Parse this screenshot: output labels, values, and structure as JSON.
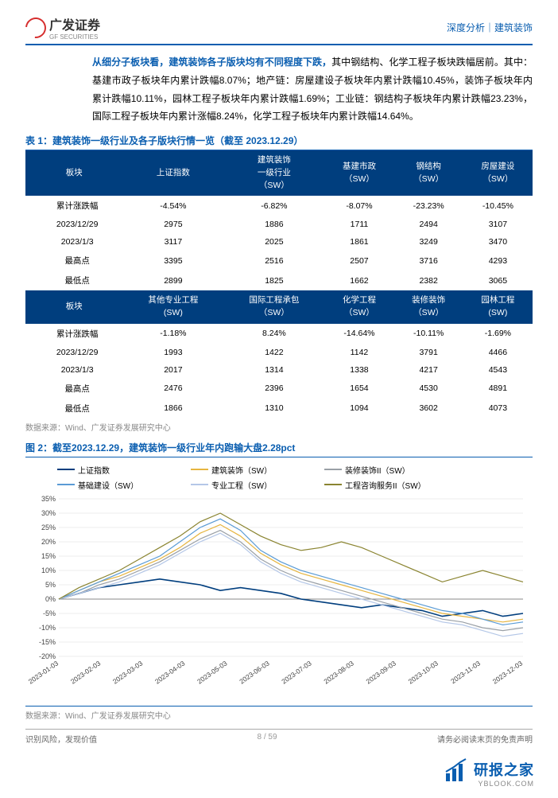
{
  "header": {
    "logo_cn": "广发证券",
    "logo_en": "GF SECURITIES",
    "right": "深度分析｜建筑装饰"
  },
  "paragraph": {
    "lead": "从细分子板块看，建筑装饰各子版块均有不同程度下跌，",
    "rest": "其中钢结构、化学工程子板块跌幅居前。其中：基建市政子板块年内累计跌幅8.07%；地产链：房屋建设子板块年内累计跌幅10.45%，装饰子板块年内累计跌幅10.11%，园林工程子板块年内累计跌幅1.69%；工业链：钢结构子板块年内累计跌幅23.23%，国际工程子板块年内累计涨幅8.24%，化学工程子板块年内累计跌幅14.64%。"
  },
  "table1": {
    "caption": "表 1：建筑装饰一级行业及各子版块行情一览（截至 2023.12.29）",
    "source": "数据来源：Wind、广发证券发展研究中心",
    "head1": [
      "板块",
      "上证指数",
      "建筑装饰\n一级行业\n（SW）",
      "基建市政\n（SW）",
      "钢结构\n（SW）",
      "房屋建设\n（SW）"
    ],
    "rows1": [
      [
        "累计涨跌幅",
        "-4.54%",
        "-6.82%",
        "-8.07%",
        "-23.23%",
        "-10.45%"
      ],
      [
        "2023/12/29",
        "2975",
        "1886",
        "1711",
        "2494",
        "3107"
      ],
      [
        "2023/1/3",
        "3117",
        "2025",
        "1861",
        "3249",
        "3470"
      ],
      [
        "最高点",
        "3395",
        "2516",
        "2507",
        "3716",
        "4293"
      ],
      [
        "最低点",
        "2899",
        "1825",
        "1662",
        "2382",
        "3065"
      ]
    ],
    "head2": [
      "板块",
      "其他专业工程\n(SW)",
      "国际工程承包\n（SW）",
      "化学工程\n（SW）",
      "装修装饰\n（SW）",
      "园林工程\n(SW)"
    ],
    "rows2": [
      [
        "累计涨跌幅",
        "-1.18%",
        "8.24%",
        "-14.64%",
        "-10.11%",
        "-1.69%"
      ],
      [
        "2023/12/29",
        "1993",
        "1422",
        "1142",
        "3791",
        "4466"
      ],
      [
        "2023/1/3",
        "2017",
        "1314",
        "1338",
        "4217",
        "4543"
      ],
      [
        "最高点",
        "2476",
        "2396",
        "1654",
        "4530",
        "4891"
      ],
      [
        "最低点",
        "1866",
        "1310",
        "1094",
        "3602",
        "4073"
      ]
    ]
  },
  "chart": {
    "caption": "图 2：截至2023.12.29，建筑装饰一级行业年内跑输大盘2.28pct",
    "source": "数据来源：Wind、广发证券发展研究中心",
    "type": "line",
    "ylim": [
      -20,
      35
    ],
    "ytick_step": 5,
    "ylabels": [
      "-20%",
      "-15%",
      "-10%",
      "-5%",
      "0%",
      "5%",
      "10%",
      "15%",
      "20%",
      "25%",
      "30%",
      "35%"
    ],
    "xlabels": [
      "2023-01-03",
      "2023-02-03",
      "2023-03-03",
      "2023-04-03",
      "2023-05-03",
      "2023-06-03",
      "2023-07-03",
      "2023-08-03",
      "2023-09-03",
      "2023-10-03",
      "2023-11-03",
      "2023-12-03"
    ],
    "grid_color": "#d9d9d9",
    "background": "#ffffff",
    "series": [
      {
        "name": "上证指数",
        "color": "#003e7e",
        "width": 1.6,
        "data": [
          0,
          2,
          4,
          5,
          6,
          7,
          6,
          5,
          3,
          4,
          3,
          2,
          0,
          -1,
          -2,
          -3,
          -2,
          -3,
          -4,
          -6,
          -5,
          -4,
          -6,
          -5
        ]
      },
      {
        "name": "建筑装饰（SW）",
        "color": "#e6b540",
        "width": 1.2,
        "data": [
          0,
          3,
          6,
          8,
          11,
          14,
          18,
          23,
          26,
          22,
          16,
          12,
          9,
          7,
          5,
          3,
          1,
          -1,
          -3,
          -5,
          -6,
          -7,
          -8,
          -7
        ]
      },
      {
        "name": "装修装饰II（SW）",
        "color": "#9aa0a6",
        "width": 1.2,
        "data": [
          0,
          2,
          5,
          7,
          10,
          13,
          17,
          21,
          24,
          20,
          14,
          10,
          7,
          5,
          3,
          1,
          -1,
          -3,
          -5,
          -7,
          -8,
          -10,
          -11,
          -10
        ]
      },
      {
        "name": "基础建设（SW）",
        "color": "#5a9bd5",
        "width": 1.2,
        "data": [
          0,
          3,
          6,
          9,
          12,
          15,
          20,
          25,
          28,
          24,
          17,
          13,
          10,
          8,
          6,
          4,
          2,
          0,
          -2,
          -4,
          -5,
          -7,
          -9,
          -8
        ]
      },
      {
        "name": "专业工程（SW）",
        "color": "#b4c7e7",
        "width": 1.2,
        "data": [
          0,
          2,
          4,
          6,
          9,
          12,
          16,
          20,
          23,
          19,
          13,
          9,
          6,
          4,
          2,
          0,
          -2,
          -4,
          -6,
          -8,
          -9,
          -11,
          -13,
          -12
        ]
      },
      {
        "name": "工程咨询服务II（SW）",
        "color": "#8a8430",
        "width": 1.2,
        "data": [
          0,
          4,
          7,
          10,
          14,
          18,
          22,
          27,
          30,
          26,
          22,
          19,
          17,
          18,
          20,
          18,
          15,
          12,
          9,
          6,
          8,
          10,
          8,
          6
        ]
      }
    ]
  },
  "footer": {
    "left": "识别风险，发现价值",
    "center": "8 / 59",
    "right": "请务必阅读末页的免责声明"
  },
  "watermark": {
    "text": "研报之家",
    "sub": "YBLOOK.COM"
  }
}
